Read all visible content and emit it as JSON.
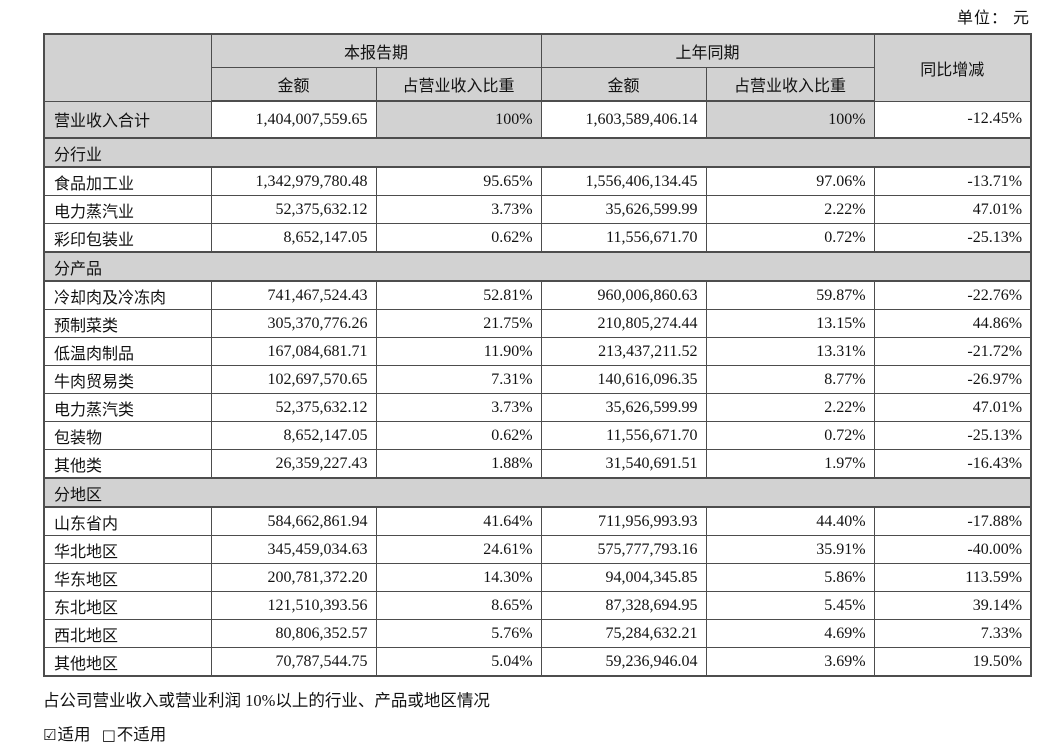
{
  "unit_label": "单位： 元",
  "table": {
    "header": {
      "current_period": "本报告期",
      "prior_period": "上年同期",
      "yoy": "同比增减",
      "sub": [
        "金额",
        "占营业收入比重",
        "金额",
        "占营业收入比重"
      ]
    },
    "rows": [
      {
        "type": "total",
        "cells": [
          "营业收入合计",
          "1,404,007,559.65",
          "100%",
          "1,603,589,406.14",
          "100%",
          "-12.45%"
        ]
      },
      {
        "type": "section",
        "label": "分行业"
      },
      {
        "type": "data",
        "cells": [
          "食品加工业",
          "1,342,979,780.48",
          "95.65%",
          "1,556,406,134.45",
          "97.06%",
          "-13.71%"
        ]
      },
      {
        "type": "data",
        "cells": [
          "电力蒸汽业",
          "52,375,632.12",
          "3.73%",
          "35,626,599.99",
          "2.22%",
          "47.01%"
        ]
      },
      {
        "type": "data",
        "cells": [
          "彩印包装业",
          "8,652,147.05",
          "0.62%",
          "11,556,671.70",
          "0.72%",
          "-25.13%"
        ]
      },
      {
        "type": "section",
        "label": "分产品"
      },
      {
        "type": "data",
        "cells": [
          "冷却肉及冷冻肉",
          "741,467,524.43",
          "52.81%",
          "960,006,860.63",
          "59.87%",
          "-22.76%"
        ]
      },
      {
        "type": "data",
        "cells": [
          "预制菜类",
          "305,370,776.26",
          "21.75%",
          "210,805,274.44",
          "13.15%",
          "44.86%"
        ]
      },
      {
        "type": "data",
        "cells": [
          "低温肉制品",
          "167,084,681.71",
          "11.90%",
          "213,437,211.52",
          "13.31%",
          "-21.72%"
        ]
      },
      {
        "type": "data",
        "cells": [
          "牛肉贸易类",
          "102,697,570.65",
          "7.31%",
          "140,616,096.35",
          "8.77%",
          "-26.97%"
        ]
      },
      {
        "type": "data",
        "cells": [
          "电力蒸汽类",
          "52,375,632.12",
          "3.73%",
          "35,626,599.99",
          "2.22%",
          "47.01%"
        ]
      },
      {
        "type": "data",
        "cells": [
          "包装物",
          "8,652,147.05",
          "0.62%",
          "11,556,671.70",
          "0.72%",
          "-25.13%"
        ]
      },
      {
        "type": "data",
        "cells": [
          "其他类",
          "26,359,227.43",
          "1.88%",
          "31,540,691.51",
          "1.97%",
          "-16.43%"
        ]
      },
      {
        "type": "section",
        "label": "分地区"
      },
      {
        "type": "data",
        "cells": [
          "山东省内",
          "584,662,861.94",
          "41.64%",
          "711,956,993.93",
          "44.40%",
          "-17.88%"
        ]
      },
      {
        "type": "data",
        "cells": [
          "华北地区",
          "345,459,034.63",
          "24.61%",
          "575,777,793.16",
          "35.91%",
          "-40.00%"
        ]
      },
      {
        "type": "data",
        "cells": [
          "华东地区",
          "200,781,372.20",
          "14.30%",
          "94,004,345.85",
          "5.86%",
          "113.59%"
        ]
      },
      {
        "type": "data",
        "cells": [
          "东北地区",
          "121,510,393.56",
          "8.65%",
          "87,328,694.95",
          "5.45%",
          "39.14%"
        ]
      },
      {
        "type": "data",
        "cells": [
          "西北地区",
          "80,806,352.57",
          "5.76%",
          "75,284,632.21",
          "4.69%",
          "7.33%"
        ]
      },
      {
        "type": "data",
        "cells": [
          "其他地区",
          "70,787,544.75",
          "5.04%",
          "59,236,946.04",
          "3.69%",
          "19.50%"
        ]
      }
    ]
  },
  "footer": {
    "note": "占公司营业收入或营业利润 10%以上的行业、产品或地区情况",
    "applicable_box": "☑",
    "applicable_label": "适用",
    "not_applicable_box": "□",
    "not_applicable_label": "不适用"
  },
  "colors": {
    "cell_gray": "#d2d2d2",
    "border": "#4d4d4d",
    "text": "#111111"
  }
}
